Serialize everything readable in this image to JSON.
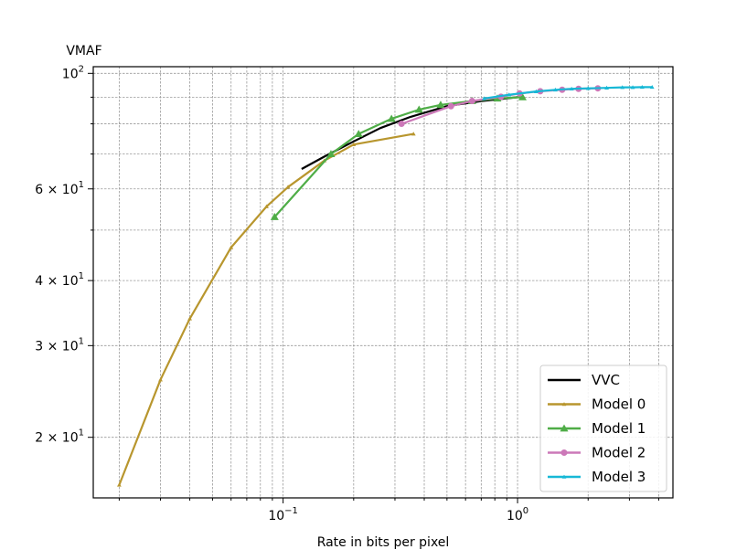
{
  "chart_data": {
    "type": "line",
    "title": "",
    "xlabel": "Rate in bits per pixel",
    "ylabel": "VMAF",
    "xscale": "log",
    "yscale": "log",
    "xlim": [
      0.0155,
      4.6
    ],
    "ylim": [
      15.3,
      103
    ],
    "grid": true,
    "legend_position": "lower-right",
    "x_ticks": [
      {
        "value": 0.1,
        "base": "10",
        "exp": "−1"
      },
      {
        "value": 1,
        "base": "10",
        "exp": "0"
      }
    ],
    "y_ticks": [
      {
        "value": 20,
        "coef": "2 × 10",
        "exp": "1"
      },
      {
        "value": 30,
        "coef": "3 × 10",
        "exp": "1"
      },
      {
        "value": 40,
        "coef": "4 × 10",
        "exp": "1"
      },
      {
        "value": 60,
        "coef": "6 × 10",
        "exp": "1"
      },
      {
        "value": 100,
        "coef": "10",
        "exp": "2"
      }
    ],
    "series": [
      {
        "name": "VVC",
        "color": "#000000",
        "marker": "none",
        "x": [
          0.12,
          0.15,
          0.2,
          0.26,
          0.35,
          0.5,
          0.7,
          1.0
        ],
        "y": [
          65.5,
          69.2,
          74.0,
          78.5,
          82.5,
          86.5,
          88.5,
          90.0
        ]
      },
      {
        "name": "Model 0",
        "color": "#b8962e",
        "marker": "triangle-small",
        "x": [
          0.02,
          0.03,
          0.04,
          0.06,
          0.085,
          0.105,
          0.15,
          0.2,
          0.36
        ],
        "y": [
          16.2,
          25.8,
          33.8,
          46.3,
          55.5,
          60.5,
          68.0,
          73.0,
          76.5
        ]
      },
      {
        "name": "Model 1",
        "color": "#4fad47",
        "marker": "triangle",
        "x": [
          0.092,
          0.16,
          0.21,
          0.29,
          0.38,
          0.47,
          0.64,
          0.82,
          1.05
        ],
        "y": [
          53.0,
          70.0,
          76.5,
          81.8,
          85.2,
          87.0,
          88.5,
          89.5,
          90.0
        ]
      },
      {
        "name": "Model 2",
        "color": "#cc78b8",
        "marker": "circle",
        "x": [
          0.32,
          0.52,
          0.64,
          0.85,
          1.02,
          1.25,
          1.55,
          1.82,
          2.2
        ],
        "y": [
          80.0,
          86.5,
          88.5,
          90.2,
          91.5,
          92.4,
          93.0,
          93.4,
          93.6
        ]
      },
      {
        "name": "Model 3",
        "color": "#17b8d6",
        "marker": "triangle-small",
        "x": [
          0.72,
          0.92,
          1.2,
          1.45,
          1.7,
          2.0,
          2.4,
          2.8,
          3.1,
          3.4,
          3.75
        ],
        "y": [
          89.5,
          91.0,
          92.3,
          93.0,
          93.4,
          93.6,
          93.8,
          94.0,
          94.0,
          94.1,
          94.1
        ]
      }
    ]
  }
}
